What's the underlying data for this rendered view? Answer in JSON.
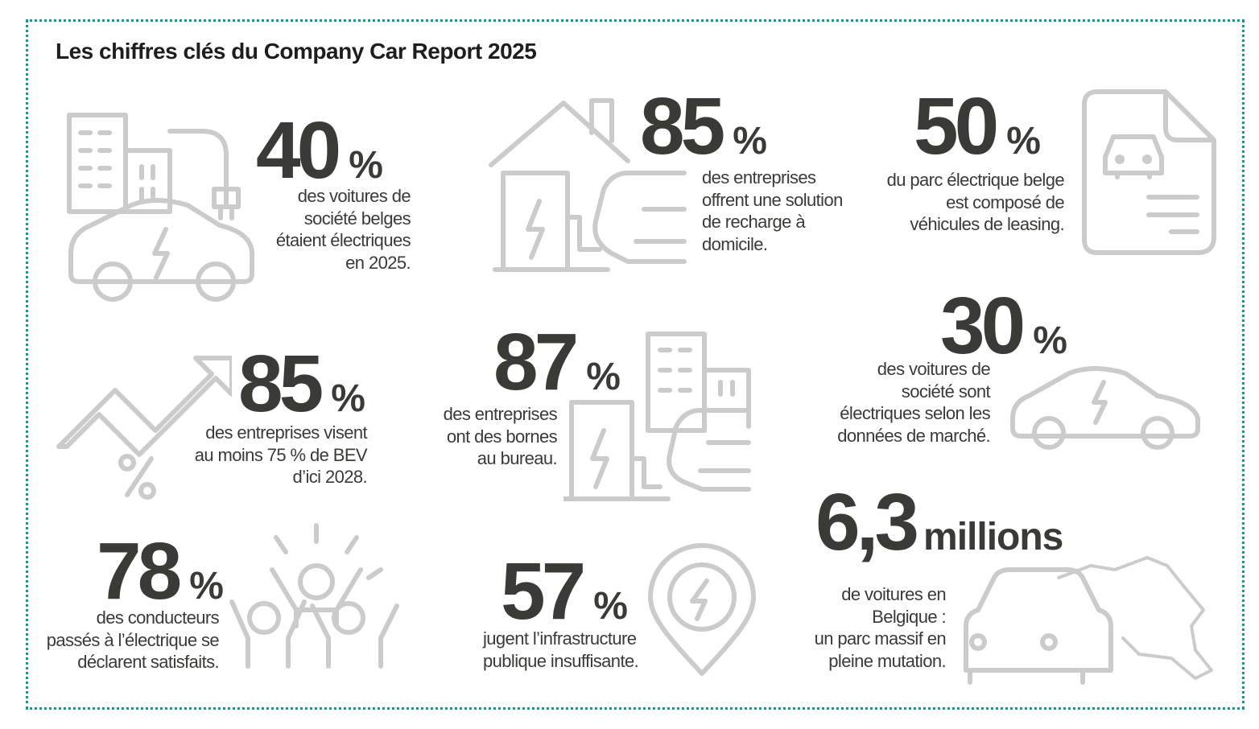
{
  "title": "Les chiffres clés du Company Car Report 2025",
  "colors": {
    "border": "#15998e",
    "numbers": "#3a3a37",
    "icons": "#cbcbcb"
  },
  "stats": [
    {
      "value": "40",
      "unit": "%",
      "lines": [
        "des voitures de",
        "société belges",
        "étaient électriques",
        "en 2025."
      ],
      "icon": "building-ev-car-plug-icon"
    },
    {
      "value": "85",
      "unit": "%",
      "lines": [
        "des entreprises",
        "offrent une solution",
        "de recharge à",
        "domicile."
      ],
      "icon": "home-charger-icon"
    },
    {
      "value": "50",
      "unit": "%",
      "lines": [
        "du parc électrique belge",
        "est composé de",
        "véhicules de leasing."
      ],
      "icon": "leasing-document-icon"
    },
    {
      "value": "85",
      "unit": "%",
      "lines": [
        "des entreprises visent",
        "au moins 75 % de BEV",
        "d’ici 2028."
      ],
      "icon": "growth-arrow-icon"
    },
    {
      "value": "87",
      "unit": "%",
      "lines": [
        "des entreprises",
        "ont des bornes",
        "au bureau."
      ],
      "icon": "office-charger-icon"
    },
    {
      "value": "30",
      "unit": "%",
      "lines": [
        "des voitures de",
        "société sont",
        "électriques selon les",
        "données de marché."
      ],
      "icon": "electric-car-icon"
    },
    {
      "value": "6,3",
      "unit": "millions",
      "lines": [
        "de voitures en",
        "Belgique :",
        "un parc massif en",
        "pleine mutation."
      ],
      "icon": "belgium-car-icon"
    },
    {
      "value": "78",
      "unit": "%",
      "lines": [
        "des conducteurs",
        "passés à l’électrique se",
        "déclarent satisfaits."
      ],
      "icon": "happy-people-icon"
    },
    {
      "value": "57",
      "unit": "%",
      "lines": [
        "jugent l’infrastructure",
        "publique insuffisante."
      ],
      "icon": "charging-pin-icon"
    }
  ]
}
